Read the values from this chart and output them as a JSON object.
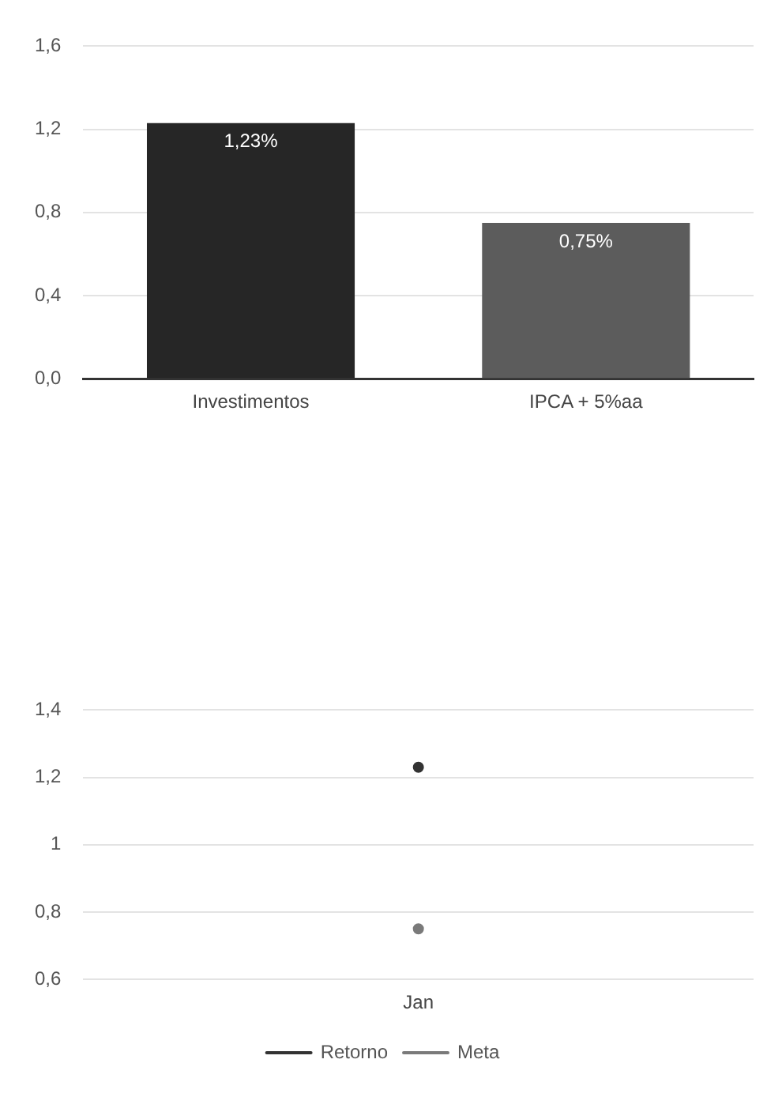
{
  "chart_data": [
    {
      "type": "bar",
      "categories": [
        "Investimentos",
        "IPCA + 5%aa"
      ],
      "values": [
        1.23,
        0.75
      ],
      "colors": [
        "#262626",
        "#5c5c5c"
      ],
      "value_labels": [
        "1,23%",
        "0,75%"
      ],
      "ylim": [
        0,
        1.6
      ],
      "yticks": [
        {
          "value": 0,
          "label": "0,0"
        },
        {
          "value": 0.4,
          "label": "0,4"
        },
        {
          "value": 0.8,
          "label": "0,8"
        },
        {
          "value": 1.2,
          "label": "1,2"
        },
        {
          "value": 1.6,
          "label": "1,6"
        }
      ],
      "grid": "y",
      "legend": false
    },
    {
      "type": "line",
      "categories": [
        "Jan"
      ],
      "series": [
        {
          "name": "Retorno",
          "color": "#333333",
          "values": [
            1.23
          ]
        },
        {
          "name": "Meta",
          "color": "#7a7a7a",
          "values": [
            0.75
          ]
        }
      ],
      "ylim": [
        0.6,
        1.4
      ],
      "yticks": [
        {
          "value": 0.6,
          "label": "0,6"
        },
        {
          "value": 0.8,
          "label": "0,8"
        },
        {
          "value": 1,
          "label": "1"
        },
        {
          "value": 1.2,
          "label": "1,2"
        },
        {
          "value": 1.4,
          "label": "1,4"
        }
      ],
      "grid": "y",
      "legend": "bottom",
      "marker": "circle",
      "line_style": "solid"
    }
  ]
}
